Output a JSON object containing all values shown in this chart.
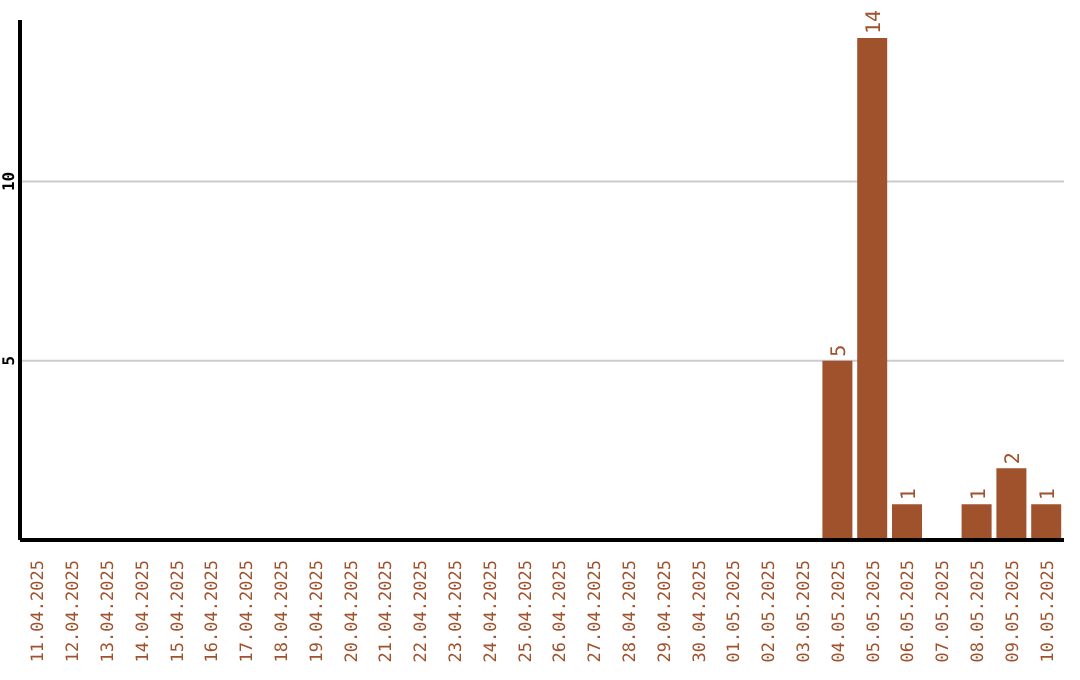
{
  "chart_data": {
    "type": "bar",
    "categories": [
      "11.04.2025",
      "12.04.2025",
      "13.04.2025",
      "14.04.2025",
      "15.04.2025",
      "16.04.2025",
      "17.04.2025",
      "18.04.2025",
      "19.04.2025",
      "20.04.2025",
      "21.04.2025",
      "22.04.2025",
      "23.04.2025",
      "24.04.2025",
      "25.04.2025",
      "26.04.2025",
      "27.04.2025",
      "28.04.2025",
      "29.04.2025",
      "30.04.2025",
      "01.05.2025",
      "02.05.2025",
      "03.05.2025",
      "04.05.2025",
      "05.05.2025",
      "06.05.2025",
      "07.05.2025",
      "08.05.2025",
      "09.05.2025",
      "10.05.2025"
    ],
    "values": [
      0,
      0,
      0,
      0,
      0,
      0,
      0,
      0,
      0,
      0,
      0,
      0,
      0,
      0,
      0,
      0,
      0,
      0,
      0,
      0,
      0,
      0,
      0,
      5,
      14,
      1,
      0,
      1,
      2,
      1
    ],
    "value_labels": [
      null,
      null,
      null,
      null,
      null,
      null,
      null,
      null,
      null,
      null,
      null,
      null,
      null,
      null,
      null,
      null,
      null,
      null,
      null,
      null,
      null,
      null,
      null,
      "5",
      "14",
      "1",
      null,
      "1",
      "2",
      "1"
    ],
    "color": "#a0522d",
    "ylim": [
      0,
      14.5
    ],
    "yticks": [
      5,
      10
    ],
    "grid": "y"
  }
}
